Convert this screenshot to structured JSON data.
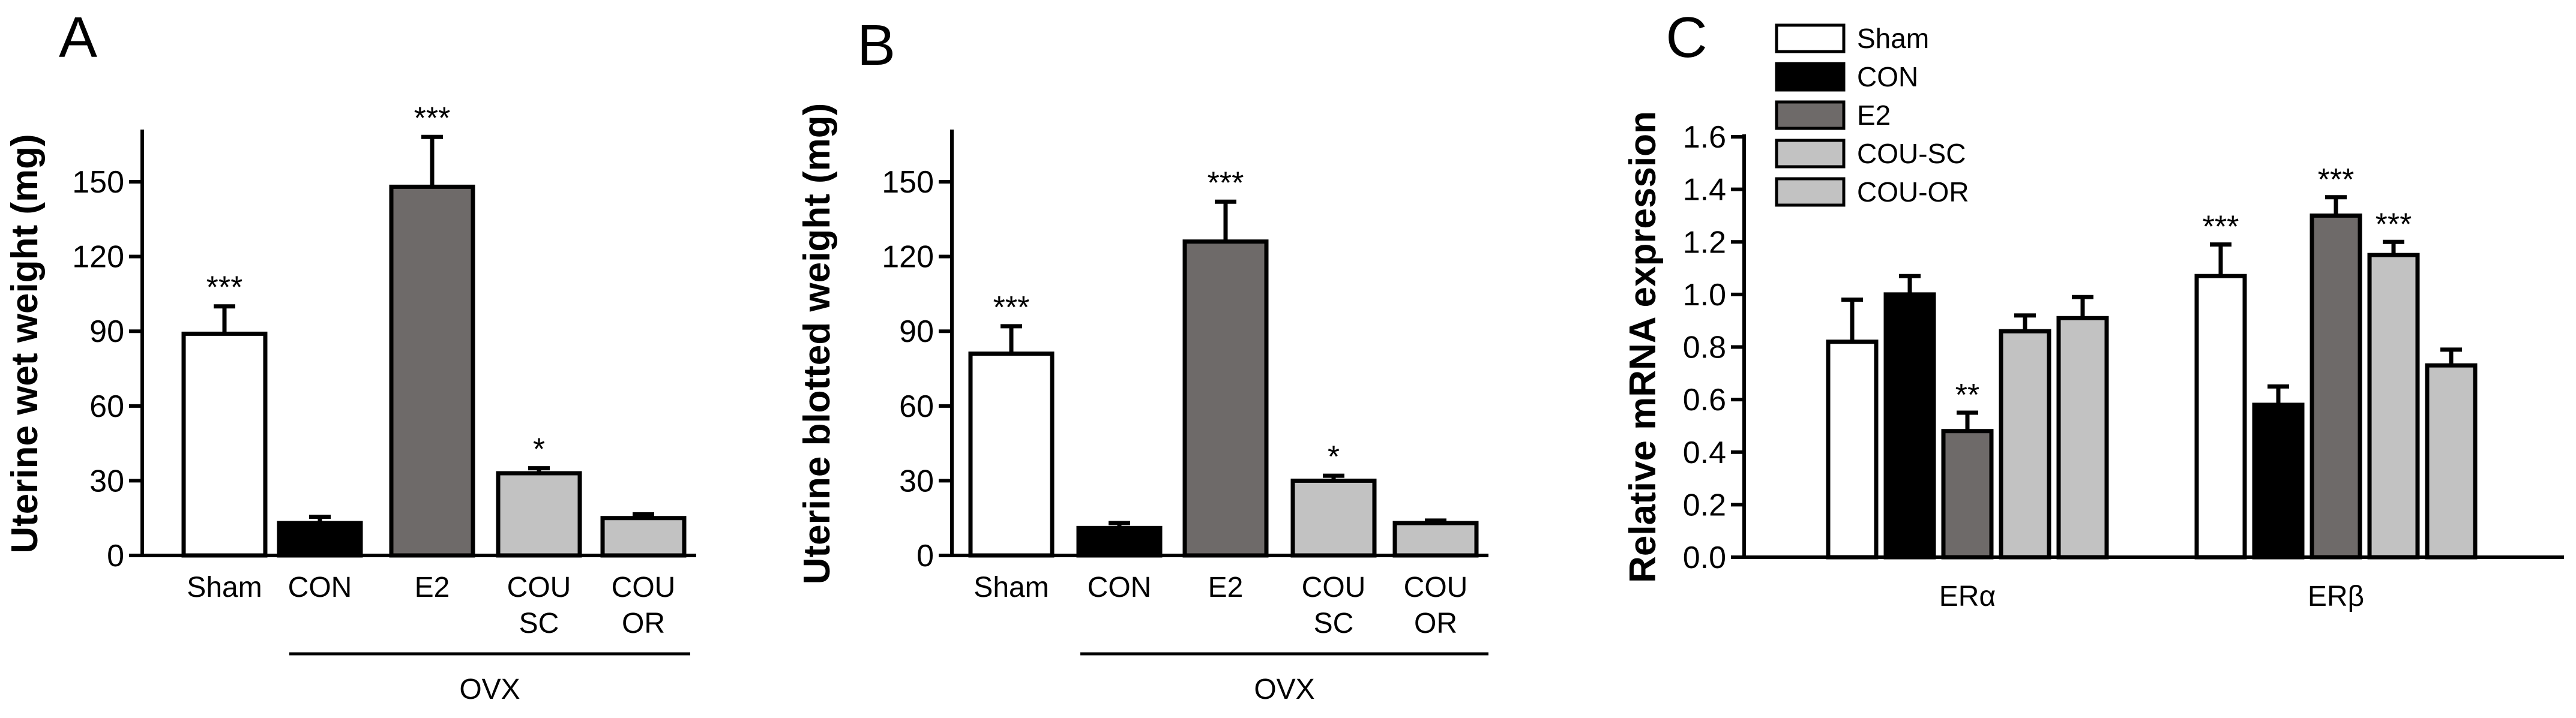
{
  "figure": {
    "legend": [
      {
        "name": "Sham",
        "color": "#ffffff"
      },
      {
        "name": "CON",
        "color": "#000000"
      },
      {
        "name": "E2",
        "color": "#6e6a69"
      },
      {
        "name": "COU-SC",
        "color": "#c2c2c2"
      },
      {
        "name": "COU-OR",
        "color": "#c2c2c2"
      }
    ]
  },
  "chart_data": [
    {
      "panel": "A",
      "type": "bar",
      "ylabel": "Uterine wet weight (mg)",
      "ylim": [
        0,
        170
      ],
      "yticks": [
        "0",
        "30",
        "60",
        "90",
        "120",
        "150"
      ],
      "categories": [
        [
          "Sham"
        ],
        [
          "CON"
        ],
        [
          "E2"
        ],
        [
          "COU",
          "SC"
        ],
        [
          "COU",
          "OR"
        ]
      ],
      "values": [
        89,
        13,
        148,
        33,
        15
      ],
      "errors": [
        11,
        2.5,
        20,
        2,
        1.5
      ],
      "significance": [
        "***",
        "",
        "***",
        "*",
        ""
      ],
      "colors": [
        "#ffffff",
        "#000000",
        "#6e6a69",
        "#c2c2c2",
        "#c2c2c2"
      ],
      "group_label": "OVX"
    },
    {
      "panel": "B",
      "type": "bar",
      "ylabel": "Uterine blotted weight (mg)",
      "ylim": [
        0,
        170
      ],
      "yticks": [
        "0",
        "30",
        "60",
        "90",
        "120",
        "150"
      ],
      "categories": [
        [
          "Sham"
        ],
        [
          "CON"
        ],
        [
          "E2"
        ],
        [
          "COU",
          "SC"
        ],
        [
          "COU",
          "OR"
        ]
      ],
      "values": [
        81,
        11,
        126,
        30,
        13
      ],
      "errors": [
        11,
        2,
        16,
        2,
        1
      ],
      "significance": [
        "***",
        "",
        "***",
        "*",
        ""
      ],
      "colors": [
        "#ffffff",
        "#000000",
        "#6e6a69",
        "#c2c2c2",
        "#c2c2c2"
      ],
      "group_label": "OVX"
    },
    {
      "panel": "C",
      "type": "bar",
      "ylabel": "Relative mRNA expression",
      "ylim": [
        0,
        1.6
      ],
      "yticks": [
        "0.0",
        "0.2",
        "0.4",
        "0.6",
        "0.8",
        "1.0",
        "1.2",
        "1.4",
        "1.6"
      ],
      "categories": [
        "ERα",
        "ERβ"
      ],
      "series": [
        {
          "name": "Sham",
          "values": [
            0.82,
            1.07
          ],
          "errors": [
            0.16,
            0.12
          ],
          "significance": [
            "",
            "***"
          ]
        },
        {
          "name": "CON",
          "values": [
            1.0,
            0.58
          ],
          "errors": [
            0.07,
            0.07
          ],
          "significance": [
            "",
            ""
          ]
        },
        {
          "name": "E2",
          "values": [
            0.48,
            1.3
          ],
          "errors": [
            0.07,
            0.07
          ],
          "significance": [
            "**",
            "***"
          ]
        },
        {
          "name": "COU-SC",
          "values": [
            0.86,
            1.15
          ],
          "errors": [
            0.06,
            0.05
          ],
          "significance": [
            "",
            "***"
          ]
        },
        {
          "name": "COU-OR",
          "values": [
            0.91,
            0.73
          ],
          "errors": [
            0.08,
            0.06
          ],
          "significance": [
            "",
            ""
          ]
        }
      ]
    }
  ]
}
